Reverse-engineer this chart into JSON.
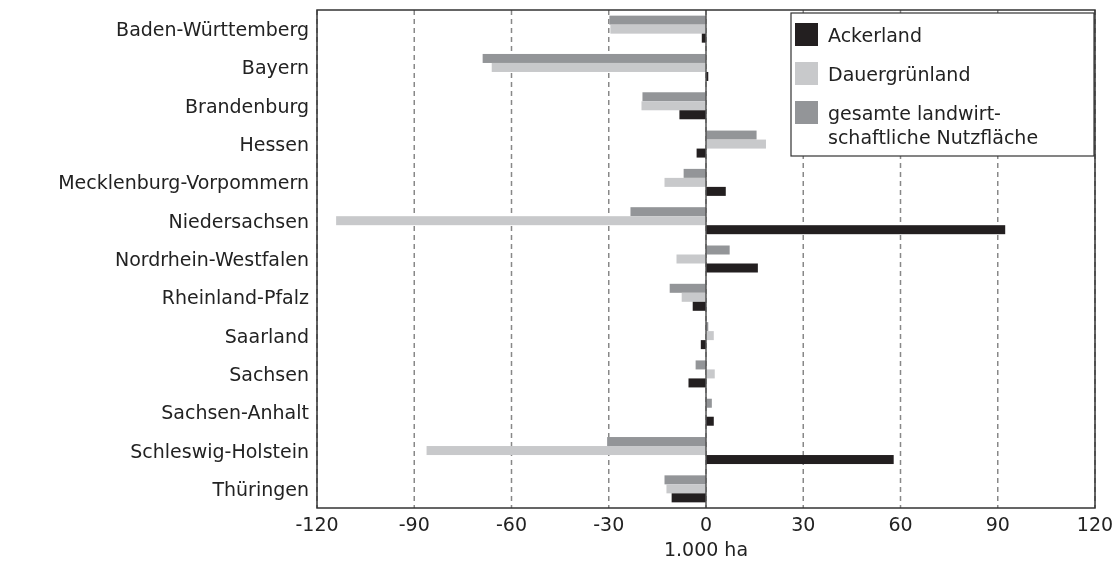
{
  "chart_data": {
    "type": "bar",
    "orientation": "horizontal",
    "xlabel": "1.000 ha",
    "categories": [
      "Baden-Württemberg",
      "Bayern",
      "Brandenburg",
      "Hessen",
      "Mecklenburg-Vorpommern",
      "Niedersachsen",
      "Nordrhein-Westfalen",
      "Rheinland-Pfalz",
      "Saarland",
      "Sachsen",
      "Sachsen-Anhalt",
      "Schleswig-Holstein",
      "Thüringen"
    ],
    "series": [
      {
        "name": "Ackerland",
        "color": "#231f20",
        "values": [
          -1.3,
          0.7,
          -8.2,
          -2.9,
          6.1,
          92.3,
          16.0,
          -4.1,
          -1.6,
          -5.4,
          2.4,
          57.9,
          -10.6
        ]
      },
      {
        "name": "Dauergrünland",
        "color": "#c8c9cb",
        "values": [
          -29.5,
          -66.1,
          -19.9,
          18.5,
          -12.8,
          -114.1,
          -9.1,
          -7.5,
          2.4,
          2.7,
          null,
          -86.2,
          -12.2
        ]
      },
      {
        "name": "gesamte landwirt-\nschaftliche Nutzfläche",
        "color": "#939598",
        "values": [
          -29.8,
          -68.9,
          -19.6,
          15.6,
          -6.9,
          -23.3,
          7.3,
          -11.2,
          0.7,
          -3.2,
          1.8,
          -30.5,
          -12.8
        ]
      }
    ],
    "xlim": [
      -120,
      120
    ],
    "xticks": [
      -120,
      -90,
      -60,
      -30,
      0,
      30,
      60,
      90,
      120
    ],
    "grid": "x",
    "legend": "top right"
  }
}
